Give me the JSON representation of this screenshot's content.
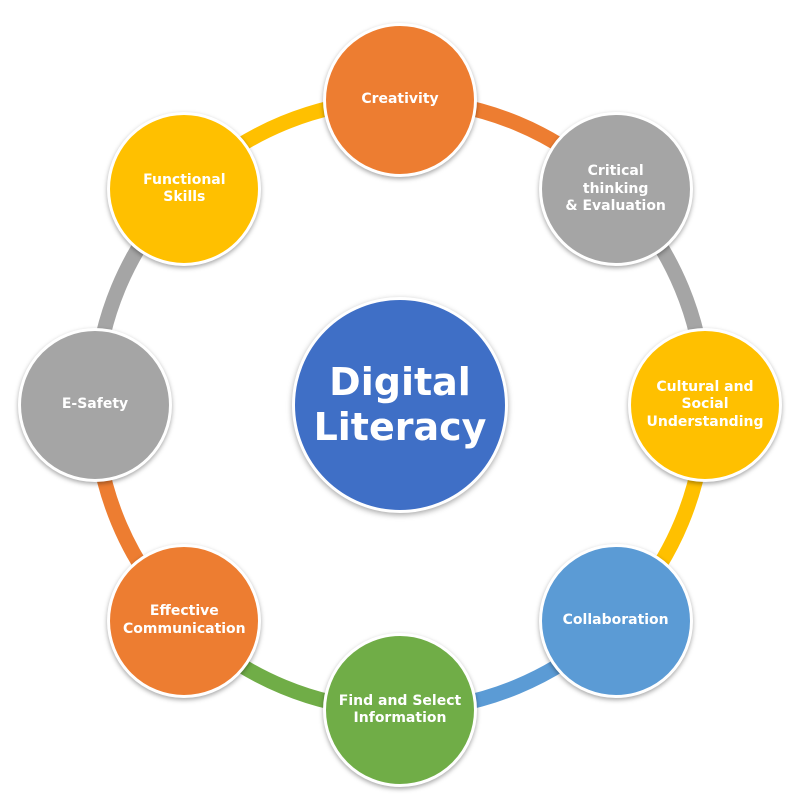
{
  "center": {
    "label": "Digital\nLiteracy",
    "color": "#3f6fc6"
  },
  "nodes": [
    {
      "label": "Creativity",
      "color": "#ed7d31"
    },
    {
      "label": "Critical thinking\n& Evaluation",
      "color": "#a5a5a5"
    },
    {
      "label": "Cultural and\nSocial\nUnderstanding",
      "color": "#ffc000"
    },
    {
      "label": "Collaboration",
      "color": "#5b9bd5"
    },
    {
      "label": "Find and Select\nInformation",
      "color": "#70ad47"
    },
    {
      "label": "Effective\nCommunication",
      "color": "#ed7d31"
    },
    {
      "label": "E-Safety",
      "color": "#a5a5a5"
    },
    {
      "label": "Functional Skills",
      "color": "#ffc000"
    }
  ],
  "ring_segment_colors": [
    "#ed7d31",
    "#a5a5a5",
    "#ffc000",
    "#5b9bd5",
    "#70ad47",
    "#ed7d31",
    "#a5a5a5",
    "#ffc000"
  ]
}
